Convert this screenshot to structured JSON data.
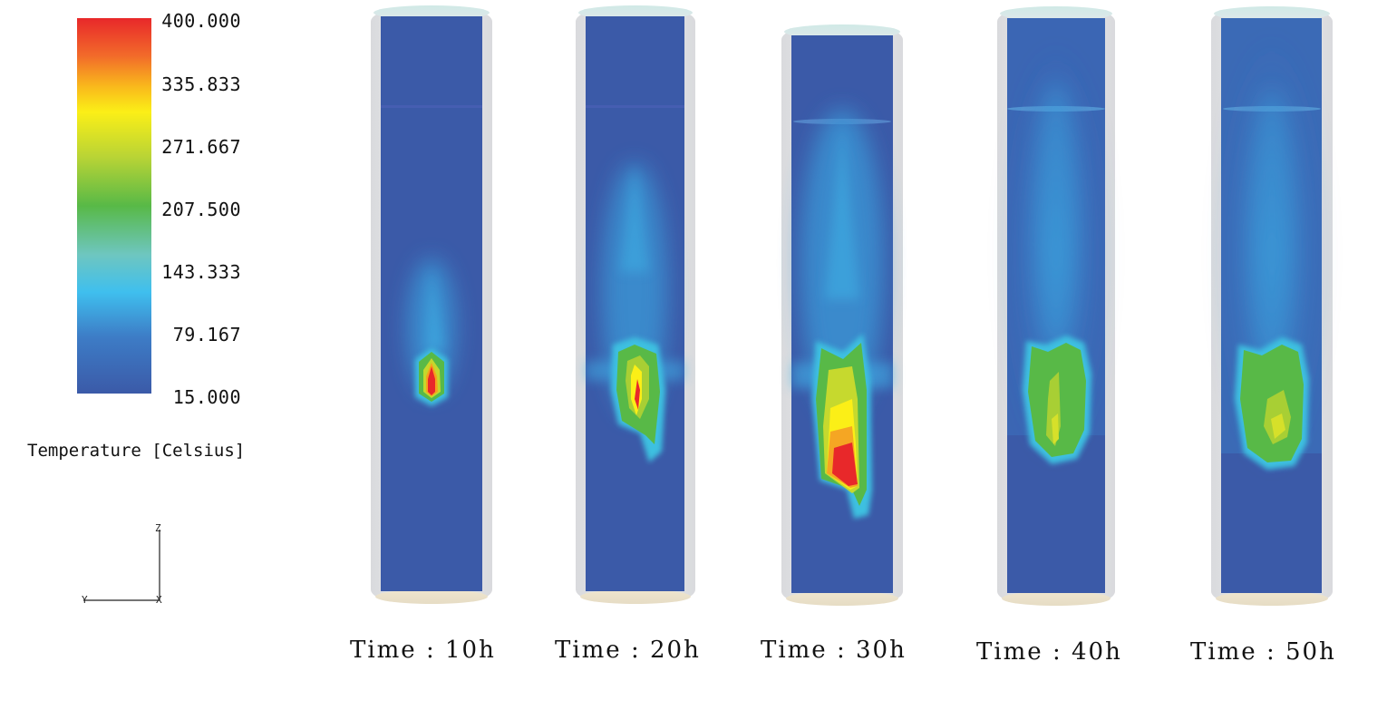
{
  "colorbar": {
    "title": "Temperature [Celsius]",
    "ticks": [
      "400.000",
      "335.833",
      "271.667",
      "207.500",
      "143.333",
      "79.167",
      "15.000"
    ],
    "colors": [
      "#e8282a",
      "#f5a623",
      "#fbef17",
      "#b8d430",
      "#58b947",
      "#6cc6c8",
      "#3fb7ec",
      "#3d8dd0",
      "#3b5ca8"
    ]
  },
  "axes": {
    "z_label": "Z",
    "y_label": "Y",
    "x_label": "X"
  },
  "panels": [
    {
      "label": "Time : 10h"
    },
    {
      "label": "Time : 20h"
    },
    {
      "label": "Time : 30h"
    },
    {
      "label": "Time : 40h"
    },
    {
      "label": "Time : 50h"
    }
  ]
}
